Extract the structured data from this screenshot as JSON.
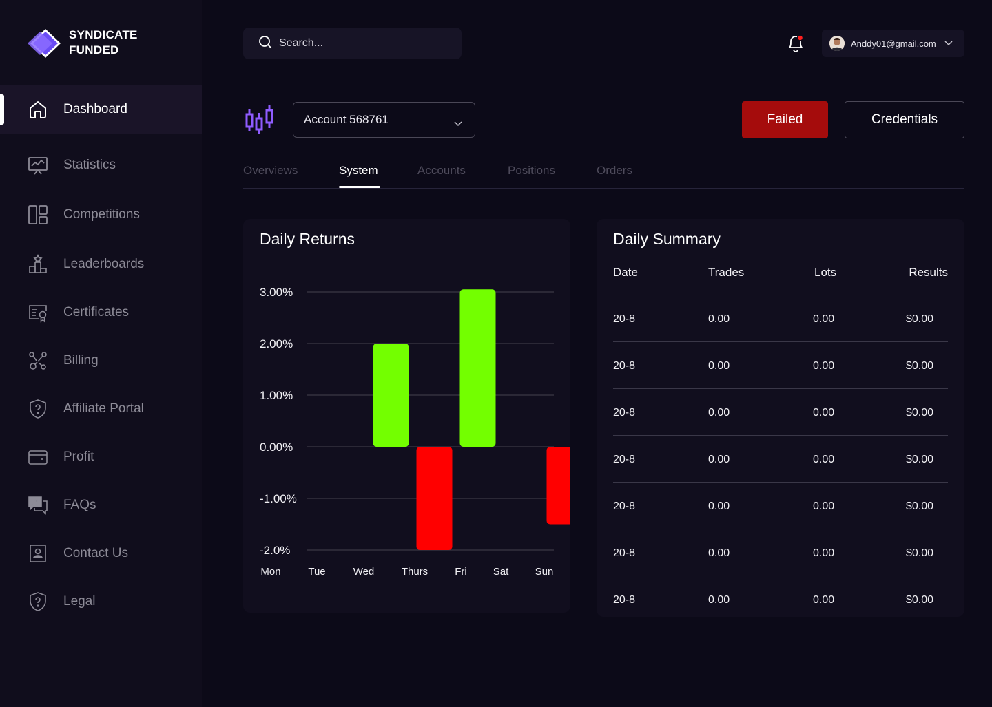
{
  "brand": {
    "line1": "SYNDICATE",
    "line2": "FUNDED"
  },
  "sidebar": {
    "items": [
      {
        "label": "Dashboard",
        "icon": "home-icon",
        "active": true
      },
      {
        "label": "Statistics",
        "icon": "statistics-icon"
      },
      {
        "label": "Competitions",
        "icon": "competitions-icon"
      },
      {
        "label": "Leaderboards",
        "icon": "leaderboard-icon"
      },
      {
        "label": "Certificates",
        "icon": "certificate-icon"
      },
      {
        "label": "Billing",
        "icon": "billing-icon"
      },
      {
        "label": "Affiliate Portal",
        "icon": "shield-question-icon"
      },
      {
        "label": "Profit",
        "icon": "wallet-icon"
      },
      {
        "label": "FAQs",
        "icon": "faq-icon"
      },
      {
        "label": "Contact Us",
        "icon": "contact-icon"
      },
      {
        "label": "Legal",
        "icon": "shield-question-icon"
      }
    ]
  },
  "header": {
    "search_placeholder": "Search...",
    "user_email": "Anddy01@gmail.com"
  },
  "account": {
    "selected": "Account 568761",
    "status_button": "Failed",
    "credentials_button": "Credentials"
  },
  "tabs": [
    {
      "label": "Overviews"
    },
    {
      "label": "System",
      "active": true
    },
    {
      "label": "Accounts"
    },
    {
      "label": "Positions"
    },
    {
      "label": "Orders"
    }
  ],
  "colors": {
    "positive": "#73ff00",
    "negative": "#ff0000",
    "failed": "#a50c0c",
    "background": "#0c0a18"
  },
  "chart_data": {
    "type": "bar",
    "title": "Daily Returns",
    "categories": [
      "Mon",
      "Tue",
      "Wed",
      "Thurs",
      "Fri",
      "Sat",
      "Sun"
    ],
    "values": [
      0,
      2.0,
      -2.0,
      3.05,
      0,
      -1.5,
      0
    ],
    "yticks": [
      "3.00%",
      "2.00%",
      "1.00%",
      "0.00%",
      "-1.00%",
      "-2.0%"
    ],
    "ytick_values": [
      3,
      2,
      1,
      0,
      -1,
      -2
    ],
    "ylim": [
      -2,
      3
    ],
    "grid": true
  },
  "summary": {
    "title": "Daily Summary",
    "columns": [
      "Date",
      "Trades",
      "Lots",
      "Results"
    ],
    "rows": [
      [
        "20-8",
        "0.00",
        "0.00",
        "$0.00"
      ],
      [
        "20-8",
        "0.00",
        "0.00",
        "$0.00"
      ],
      [
        "20-8",
        "0.00",
        "0.00",
        "$0.00"
      ],
      [
        "20-8",
        "0.00",
        "0.00",
        "$0.00"
      ],
      [
        "20-8",
        "0.00",
        "0.00",
        "$0.00"
      ],
      [
        "20-8",
        "0.00",
        "0.00",
        "$0.00"
      ],
      [
        "20-8",
        "0.00",
        "0.00",
        "$0.00"
      ]
    ]
  }
}
